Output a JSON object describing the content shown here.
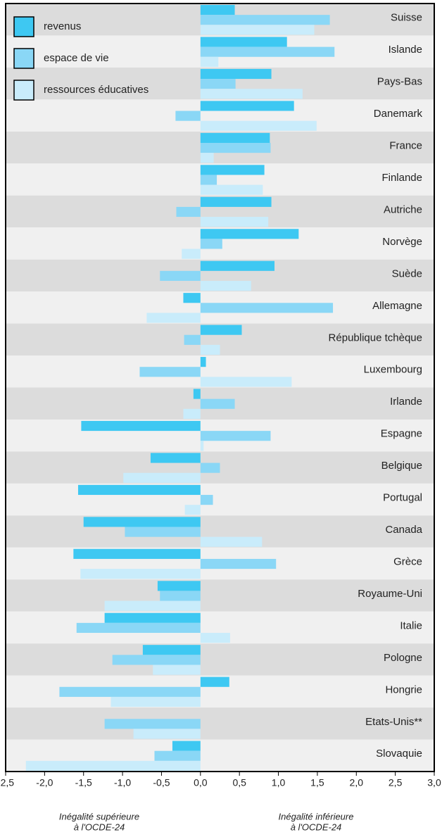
{
  "chart_data": {
    "type": "hbar",
    "categories": [
      "Suisse",
      "Islande",
      "Pays-Bas",
      "Danemark",
      "France",
      "Finlande",
      "Autriche",
      "Norvège",
      "Suède",
      "Allemagne",
      "République tchèque",
      "Luxembourg",
      "Irlande",
      "Espagne",
      "Belgique",
      "Portugal",
      "Canada",
      "Grèce",
      "Royaume-Uni",
      "Italie",
      "Pologne",
      "Hongrie",
      "Etats-Unis**",
      "Slovaquie"
    ],
    "series": [
      {
        "name": "revenus",
        "color": "#3ec8f2",
        "values": [
          0.44,
          1.11,
          0.91,
          1.2,
          0.89,
          0.82,
          0.91,
          1.26,
          0.95,
          -0.22,
          0.53,
          0.07,
          -0.09,
          -1.53,
          -0.64,
          -1.57,
          -1.5,
          -1.63,
          -0.55,
          -1.23,
          -0.74,
          0.37,
          null,
          -0.36
        ]
      },
      {
        "name": "espace de vie",
        "color": "#8ad7f6",
        "values": [
          1.66,
          1.72,
          0.45,
          -0.32,
          0.9,
          0.21,
          -0.31,
          0.28,
          -0.52,
          1.7,
          -0.21,
          -0.78,
          0.44,
          0.9,
          0.25,
          0.16,
          -0.97,
          0.97,
          -0.52,
          -1.59,
          -1.13,
          -1.81,
          -1.23,
          -0.59
        ]
      },
      {
        "name": "ressources éducatives",
        "color": "#c9ecfb",
        "values": [
          1.46,
          0.23,
          1.31,
          1.49,
          0.17,
          0.8,
          0.87,
          -0.24,
          0.65,
          -0.69,
          0.25,
          1.17,
          -0.22,
          0.04,
          -0.99,
          -0.2,
          0.79,
          -1.54,
          -1.23,
          0.38,
          -0.61,
          -1.15,
          -0.86,
          -2.24
        ]
      }
    ],
    "xlim": [
      -2.5,
      3.0
    ],
    "xticks": [
      {
        "value": -2.5,
        "label": "-2,5"
      },
      {
        "value": -2.0,
        "label": "-2,0"
      },
      {
        "value": -1.5,
        "label": "-1,5"
      },
      {
        "value": -1.0,
        "label": "-1,0"
      },
      {
        "value": -0.5,
        "label": "-0,5"
      },
      {
        "value": 0.0,
        "label": "0,0"
      },
      {
        "value": 0.5,
        "label": "0,5"
      },
      {
        "value": 1.0,
        "label": "1,0"
      },
      {
        "value": 1.5,
        "label": "1,5"
      },
      {
        "value": 2.0,
        "label": "2,0"
      },
      {
        "value": 2.5,
        "label": "2,5"
      },
      {
        "value": 3.0,
        "label": "3,0"
      }
    ],
    "x_label_left": [
      "Inégalité supérieure",
      "à l'OCDE-24"
    ],
    "x_label_right": [
      "Inégalité inférieure",
      "à l'OCDE-24"
    ]
  }
}
